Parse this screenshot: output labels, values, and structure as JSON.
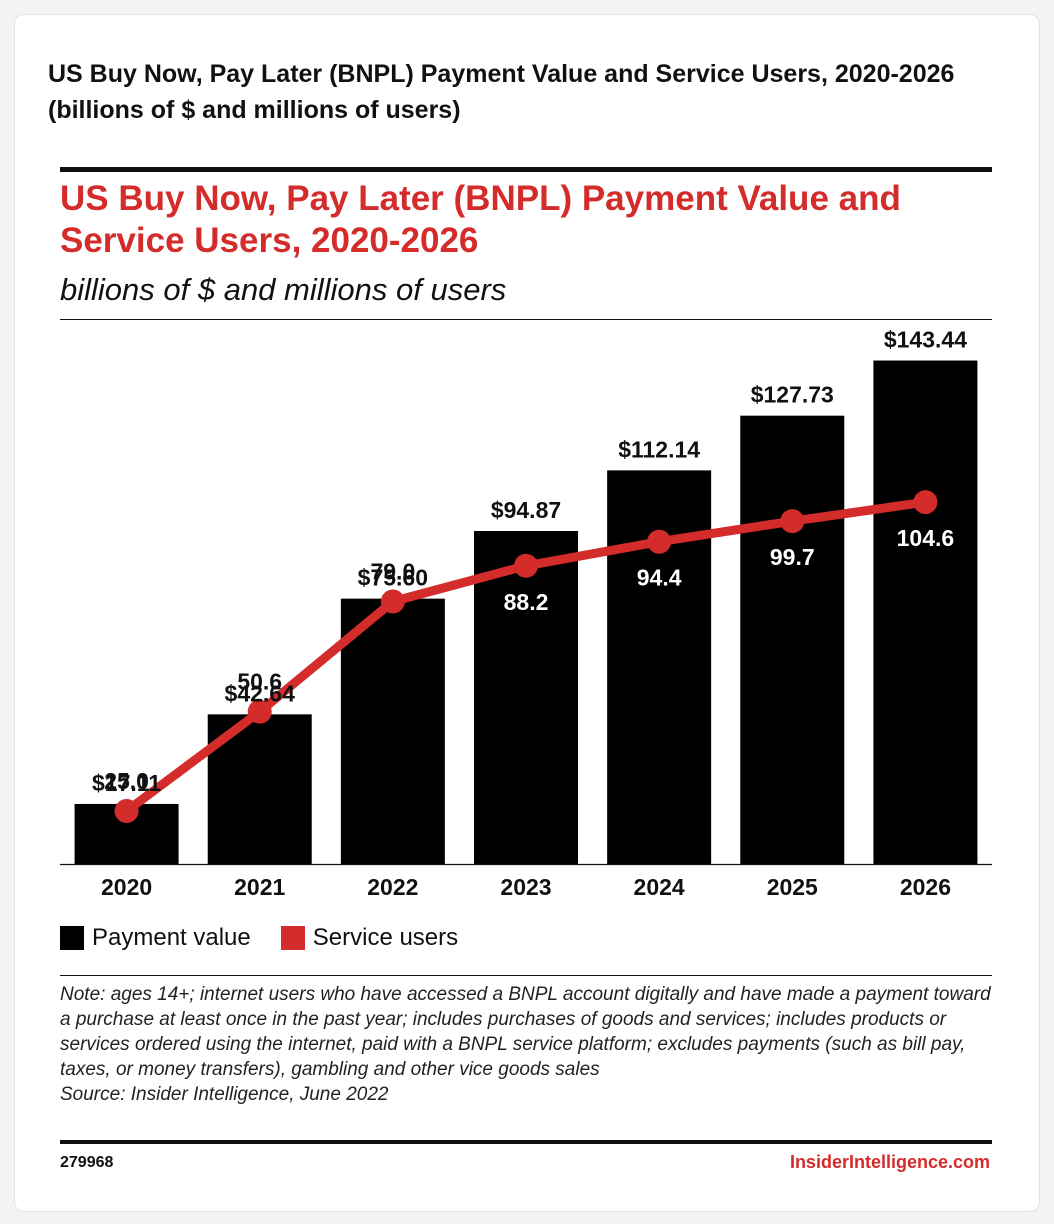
{
  "header": {
    "title": "US Buy Now, Pay Later (BNPL) Payment Value and Service Users, 2020-2026 (billions of $ and millions of users)"
  },
  "chart_data": {
    "type": "bar",
    "title": "US Buy Now, Pay Later (BNPL) Payment Value and Service Users, 2020-2026",
    "subtitle": "billions of $ and millions of users",
    "categories": [
      "2020",
      "2021",
      "2022",
      "2023",
      "2024",
      "2025",
      "2026"
    ],
    "series": [
      {
        "name": "Payment value",
        "type": "bar",
        "color": "#000000",
        "values": [
          17.11,
          42.64,
          75.6,
          94.87,
          112.14,
          127.73,
          143.44
        ],
        "labels": [
          "$17.11",
          "$42.64",
          "$75.60",
          "$94.87",
          "$112.14",
          "$127.73",
          "$143.44"
        ]
      },
      {
        "name": "Service users",
        "type": "line",
        "color": "#d42b2b",
        "values": [
          25.0,
          50.6,
          79.0,
          88.2,
          94.4,
          99.7,
          104.6
        ],
        "labels": [
          "25.0",
          "50.6",
          "79.0",
          "88.2",
          "94.4",
          "99.7",
          "104.6"
        ]
      }
    ],
    "legend": "bottom-left",
    "grid": false
  },
  "legend": {
    "items": [
      {
        "label": "Payment value",
        "color": "#000000"
      },
      {
        "label": "Service users",
        "color": "#d42b2b"
      }
    ]
  },
  "note": "Note: ages 14+; internet users who have accessed a BNPL account digitally and have made a payment toward a purchase at least once in the past year; includes purchases of goods and services; includes products or services ordered using the internet, paid with a BNPL service platform; excludes payments (such as bill pay, taxes, or money transfers), gambling and other vice goods sales",
  "source": "Source: Insider Intelligence, June 2022",
  "footer": {
    "chart_id": "279968",
    "brand": "InsiderIntelligence.com"
  }
}
